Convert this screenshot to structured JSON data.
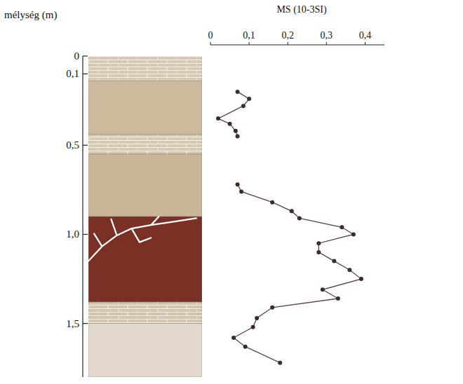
{
  "chart_data": {
    "type": "line",
    "orientation": "horizontal",
    "x_label": "mélység (m)",
    "y_label": "MS (10-3SI)",
    "xlim": [
      0,
      1.8
    ],
    "xticks": [
      0,
      {
        "value": 0.1,
        "label": "0,1"
      },
      {
        "value": 0.5,
        "label": "0,5"
      },
      {
        "value": 1.0,
        "label": "1,0"
      },
      {
        "value": 1.5,
        "label": "1,5"
      }
    ],
    "ylim": [
      0,
      0.45
    ],
    "yticks": [
      0,
      {
        "value": 0.1,
        "label": "0,1"
      },
      {
        "value": 0.2,
        "label": "0,2"
      },
      {
        "value": 0.3,
        "label": "0,3"
      },
      {
        "value": 0.4,
        "label": "0,4"
      }
    ],
    "marker": "circle",
    "color": "#5a4444",
    "series": [
      {
        "x": [
          0.2,
          0.24,
          0.28,
          0.35,
          0.38,
          0.42,
          0.45
        ],
        "values": [
          0.07,
          0.1,
          0.085,
          0.02,
          0.05,
          0.065,
          0.07
        ]
      },
      {
        "x": [
          0.72,
          0.76,
          0.82,
          0.87,
          0.91,
          0.96,
          1.0,
          1.05,
          1.1,
          1.15,
          1.2,
          1.25,
          1.31,
          1.36,
          1.41,
          1.47,
          1.52,
          1.58,
          1.63,
          1.72
        ],
        "values": [
          0.07,
          0.08,
          0.16,
          0.21,
          0.23,
          0.34,
          0.37,
          0.28,
          0.28,
          0.32,
          0.36,
          0.39,
          0.29,
          0.33,
          0.16,
          0.12,
          0.11,
          0.06,
          0.09,
          0.18
        ]
      }
    ],
    "lithology": [
      {
        "top": 0,
        "bottom": 0.14,
        "color": "#d6cab4",
        "type": "limestone"
      },
      {
        "top": 0.14,
        "bottom": 0.44,
        "color": "#cdb99c",
        "type": "soil"
      },
      {
        "top": 0.44,
        "bottom": 0.55,
        "color": "#d6cab4",
        "type": "limestone"
      },
      {
        "top": 0.55,
        "bottom": 0.9,
        "color": "#cbb597",
        "type": "soil"
      },
      {
        "top": 0.9,
        "bottom": 1.38,
        "color": "#7a3024",
        "type": "cracked"
      },
      {
        "top": 1.38,
        "bottom": 1.5,
        "color": "#d2c4ae",
        "type": "limestone"
      },
      {
        "top": 1.5,
        "bottom": 1.8,
        "color": "#e2d8cc",
        "type": "soil"
      }
    ]
  }
}
